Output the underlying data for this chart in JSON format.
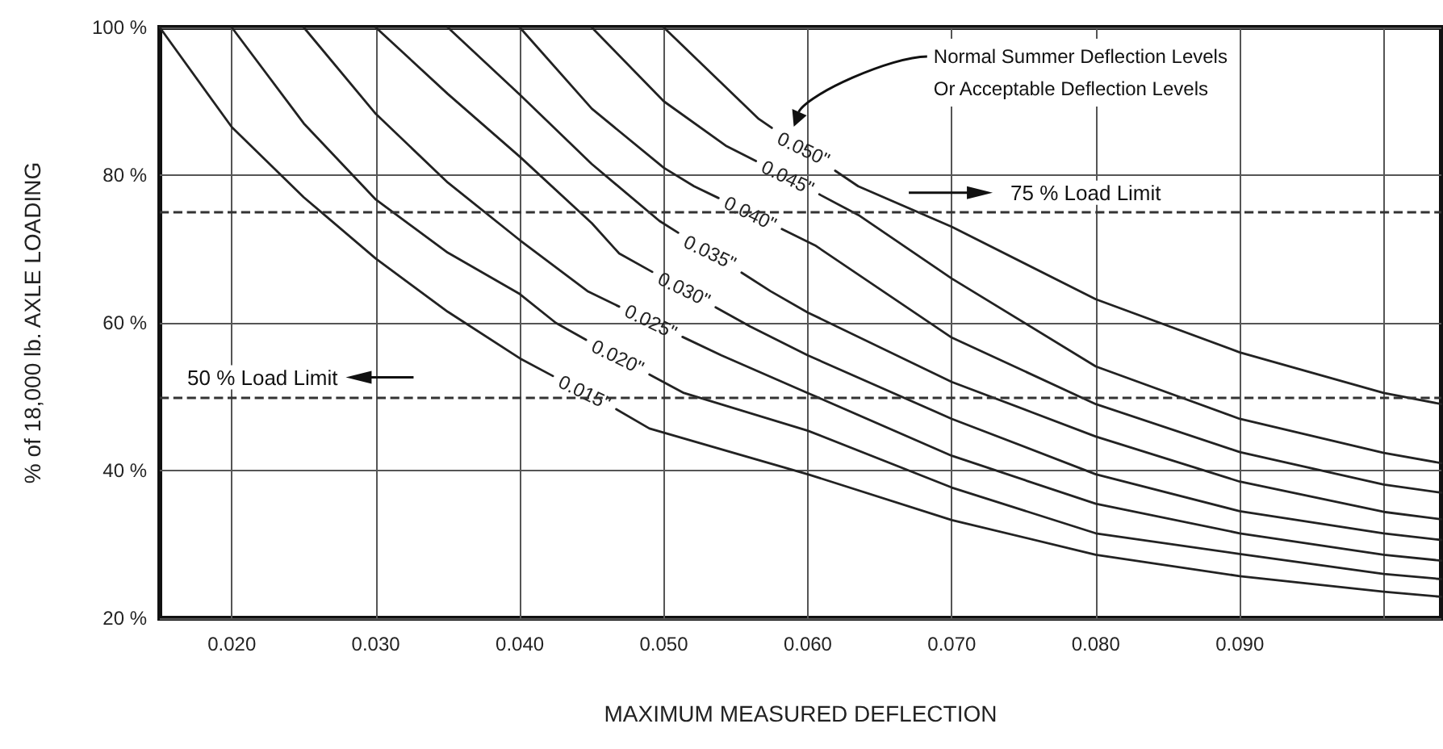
{
  "chart_data": {
    "type": "line",
    "xlabel": "MAXIMUM MEASURED DEFLECTION",
    "ylabel": "% of 18,000 lb. AXLE LOADING",
    "xlim": [
      0.015,
      0.104
    ],
    "ylim": [
      20,
      100
    ],
    "xticks": [
      {
        "value": 0.02,
        "label": "0.020"
      },
      {
        "value": 0.03,
        "label": "0.030"
      },
      {
        "value": 0.04,
        "label": "0.040"
      },
      {
        "value": 0.05,
        "label": "0.050"
      },
      {
        "value": 0.06,
        "label": "0.060"
      },
      {
        "value": 0.07,
        "label": "0.070"
      },
      {
        "value": 0.08,
        "label": "0.080"
      },
      {
        "value": 0.09,
        "label": "0.090"
      },
      {
        "value": 0.1,
        "label": null
      }
    ],
    "yticks": [
      {
        "value": 20,
        "label": "20 %"
      },
      {
        "value": 40,
        "label": "40 %"
      },
      {
        "value": 60,
        "label": "60 %"
      },
      {
        "value": 80,
        "label": "80 %"
      },
      {
        "value": 100,
        "label": "100 %"
      }
    ],
    "grid": true,
    "marker": "none",
    "line_style": "solid",
    "legend": false,
    "series": [
      {
        "name": "0.015\"",
        "color": "#222222",
        "x": [
          0.015,
          0.02,
          0.025,
          0.03,
          0.035,
          0.04,
          0.0423,
          0.0445,
          0.0467,
          0.049,
          0.055,
          0.06,
          0.07,
          0.08,
          0.09,
          0.1,
          0.104
        ],
        "values": [
          100,
          86.5,
          77,
          68.7,
          61.5,
          55.2,
          52.8,
          null,
          48.3,
          45.7,
          42.3,
          39.5,
          33.3,
          28.6,
          25.7,
          23.6,
          22.9
        ]
      },
      {
        "name": "0.020\"",
        "color": "#222222",
        "x": [
          0.02,
          0.025,
          0.03,
          0.035,
          0.04,
          0.0425,
          0.0446,
          0.0468,
          0.049,
          0.0514,
          0.06,
          0.07,
          0.08,
          0.09,
          0.1,
          0.104
        ],
        "values": [
          100,
          87,
          76.7,
          69.5,
          63.9,
          60,
          57.7,
          null,
          53,
          50.5,
          45.4,
          37.7,
          31.5,
          28.7,
          26,
          25.3
        ]
      },
      {
        "name": "0.025\"",
        "color": "#222222",
        "x": [
          0.025,
          0.03,
          0.035,
          0.04,
          0.0447,
          0.0469,
          0.0491,
          0.0513,
          0.054,
          0.06,
          0.07,
          0.08,
          0.09,
          0.1,
          0.104
        ],
        "values": [
          100,
          88.3,
          79,
          71.2,
          64.3,
          62.2,
          null,
          58.1,
          55.6,
          50.5,
          42,
          35.5,
          31.5,
          28.6,
          27.8
        ]
      },
      {
        "name": "0.030\"",
        "color": "#222222",
        "x": [
          0.03,
          0.035,
          0.04,
          0.045,
          0.0469,
          0.0492,
          0.0514,
          0.0536,
          0.056,
          0.06,
          0.07,
          0.08,
          0.09,
          0.1,
          0.104
        ],
        "values": [
          100,
          91,
          82.5,
          73.5,
          69.4,
          66.9,
          null,
          62.1,
          59.5,
          55.6,
          47,
          39.5,
          34.5,
          31.5,
          30.6
        ]
      },
      {
        "name": "0.035\"",
        "color": "#222222",
        "x": [
          0.035,
          0.04,
          0.045,
          0.0497,
          0.051,
          0.0532,
          0.0554,
          0.0574,
          0.06,
          0.07,
          0.08,
          0.09,
          0.1,
          0.104
        ],
        "values": [
          100,
          90.9,
          81.5,
          73.8,
          72.2,
          null,
          66.8,
          64.3,
          61.4,
          52,
          44.6,
          38.5,
          34.4,
          33.4
        ]
      },
      {
        "name": "0.040\"",
        "color": "#222222",
        "x": [
          0.04,
          0.045,
          0.05,
          0.0521,
          0.0538,
          0.056,
          0.0582,
          0.0605,
          0.07,
          0.08,
          0.09,
          0.1,
          0.104
        ],
        "values": [
          100,
          89,
          81,
          78.5,
          76.9,
          null,
          72.7,
          70.5,
          58,
          49,
          42.5,
          38.1,
          37
        ]
      },
      {
        "name": "0.045\"",
        "color": "#222222",
        "x": [
          0.045,
          0.05,
          0.0543,
          0.0564,
          0.0586,
          0.0608,
          0.0636,
          0.07,
          0.08,
          0.09,
          0.1,
          0.104
        ],
        "values": [
          100,
          90,
          84,
          81.9,
          null,
          77.4,
          74.5,
          66,
          54.1,
          47,
          42.4,
          41
        ]
      },
      {
        "name": "0.050\"",
        "color": "#222222",
        "x": [
          0.05,
          0.0566,
          0.0575,
          0.0597,
          0.0619,
          0.0635,
          0.07,
          0.08,
          0.09,
          0.1,
          0.104
        ],
        "values": [
          100,
          87.6,
          86.4,
          null,
          80.6,
          78.5,
          73,
          63.2,
          56,
          50.5,
          49
        ]
      }
    ],
    "ref_lines": [
      {
        "axis": "y",
        "value": 50,
        "label": "50 % Load Limit",
        "line_style": "dashed",
        "color": "#333333"
      },
      {
        "axis": "y",
        "value": 75,
        "label": "75 % Load Limit",
        "line_style": "dashed",
        "color": "#333333"
      }
    ],
    "annotations": [
      "Normal Summer Deflection Levels\nOr Acceptable Deflection Levels"
    ]
  }
}
